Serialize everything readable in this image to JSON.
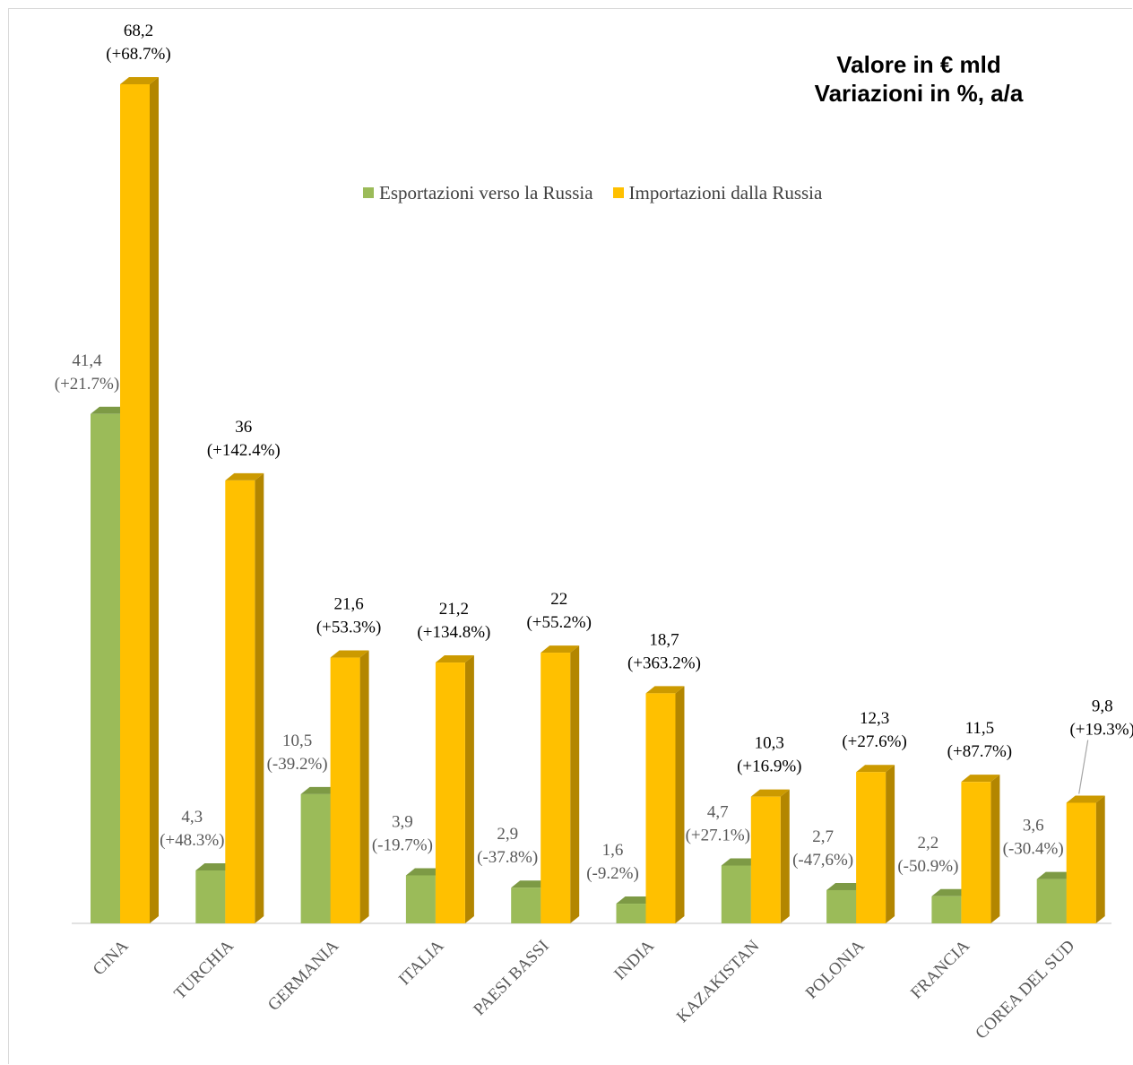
{
  "title": [
    "Valore in € mld",
    "Variazioni in %, a/a"
  ],
  "colors": {
    "exports": "#9bbb59",
    "exports_side": "#6f8a3c",
    "exports_top": "#7d9a45",
    "imports": "#ffc000",
    "imports_side": "#b38600",
    "imports_top": "#cc9a00",
    "axis": "#d9d9d9"
  },
  "chart_data": {
    "type": "bar",
    "title": "Valore in € mld\nVariazioni in %, a/a",
    "categories": [
      "CINA",
      "TURCHIA",
      "GERMANIA",
      "ITALIA",
      "PAESI BASSI",
      "INDIA",
      "KAZAKISTAN",
      "POLONIA",
      "FRANCIA",
      "COREA DEL SUD"
    ],
    "series": [
      {
        "name": "Esportazioni verso la Russia",
        "values": [
          41.4,
          4.3,
          10.5,
          3.9,
          2.9,
          1.6,
          4.7,
          2.7,
          2.2,
          3.6
        ],
        "value_labels": [
          "41,4",
          "4,3",
          "10,5",
          "3,9",
          "2,9",
          "1,6",
          "4,7",
          "2,7",
          "2,2",
          "3,6"
        ],
        "change_labels": [
          "(+21.7%)",
          "(+48.3%)",
          "(-39.2%)",
          "(-19.7%)",
          "(-37.8%)",
          "(-9.2%)",
          "(+27.1%)",
          "(-47,6%)",
          "(-50.9%)",
          "(-30.4%)"
        ]
      },
      {
        "name": "Importazioni dalla Russia",
        "values": [
          68.2,
          36,
          21.6,
          21.2,
          22,
          18.7,
          10.3,
          12.3,
          11.5,
          9.8
        ],
        "value_labels": [
          "68,2",
          "36",
          "21,6",
          "21,2",
          "22",
          "18,7",
          "10,3",
          "12,3",
          "11,5",
          "9,8"
        ],
        "change_labels": [
          "(+68.7%)",
          "(+142.4%)",
          "(+53.3%)",
          "(+134.8%)",
          "(+55.2%)",
          "(+363.2%)",
          "(+16.9%)",
          "(+27.6%)",
          "(+87.7%)",
          "(+19.3%)"
        ]
      }
    ],
    "ylim": [
      0,
      68.2
    ],
    "xlabel": "",
    "ylabel": "",
    "legend_position": "top-center",
    "grid": false,
    "style": "3d-clustered-column"
  }
}
